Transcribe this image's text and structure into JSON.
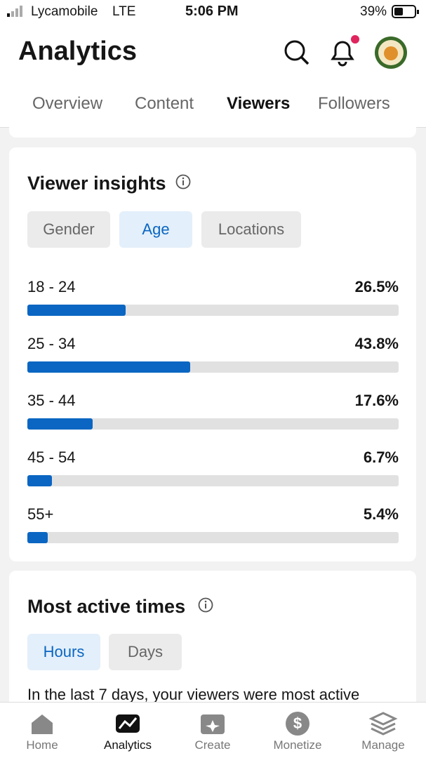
{
  "status_bar": {
    "carrier": "Lycamobile",
    "network": "LTE",
    "time": "5:06 PM",
    "battery": "39%"
  },
  "header": {
    "title": "Analytics"
  },
  "tabs": [
    "Overview",
    "Content",
    "Viewers",
    "Followers"
  ],
  "viewer_insights": {
    "title": "Viewer insights",
    "filters": [
      "Gender",
      "Age",
      "Locations"
    ],
    "xlim": [
      0,
      100
    ],
    "rows": [
      {
        "label": "18 - 24",
        "value": 26.5,
        "value_label": "26.5%"
      },
      {
        "label": "25 - 34",
        "value": 43.8,
        "value_label": "43.8%"
      },
      {
        "label": "35 - 44",
        "value": 17.6,
        "value_label": "17.6%"
      },
      {
        "label": "45 - 54",
        "value": 6.7,
        "value_label": "6.7%"
      },
      {
        "label": "55+",
        "value": 5.4,
        "value_label": "5.4%"
      }
    ]
  },
  "most_active_times": {
    "title": "Most active times",
    "filters": [
      "Hours",
      "Days"
    ],
    "text": "In the last 7 days, your viewers were most active"
  },
  "bottom_nav": [
    "Home",
    "Analytics",
    "Create",
    "Monetize",
    "Manage"
  ]
}
